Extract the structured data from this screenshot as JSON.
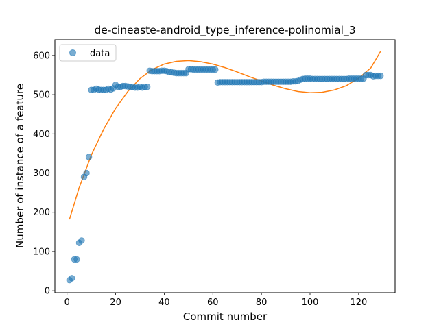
{
  "chart_data": {
    "type": "scatter",
    "title": "de-cineaste-android_type_inference-polinomial_3",
    "xlabel": "Commit number",
    "ylabel": "Number of instance of a feature",
    "xlim": [
      -5,
      135
    ],
    "ylim": [
      -5,
      640
    ],
    "xticks": [
      0,
      20,
      40,
      60,
      80,
      100,
      120
    ],
    "yticks": [
      0,
      100,
      200,
      300,
      400,
      500,
      600
    ],
    "grid": false,
    "legend_position": "top-left",
    "series": [
      {
        "name": "data",
        "kind": "markers",
        "color": "#1f77b4",
        "points": [
          [
            1,
            27
          ],
          [
            2,
            32
          ],
          [
            3,
            80
          ],
          [
            4,
            80
          ],
          [
            5,
            122
          ],
          [
            6,
            128
          ],
          [
            7,
            290
          ],
          [
            8,
            300
          ],
          [
            9,
            341
          ],
          [
            10,
            512
          ],
          [
            11,
            512
          ],
          [
            12,
            515
          ],
          [
            13,
            513
          ],
          [
            14,
            512
          ],
          [
            15,
            512
          ],
          [
            16,
            512
          ],
          [
            17,
            515
          ],
          [
            18,
            513
          ],
          [
            19,
            516
          ],
          [
            20,
            525
          ],
          [
            21,
            520
          ],
          [
            22,
            520
          ],
          [
            23,
            522
          ],
          [
            24,
            522
          ],
          [
            25,
            521
          ],
          [
            26,
            520
          ],
          [
            27,
            520
          ],
          [
            28,
            518
          ],
          [
            29,
            518
          ],
          [
            30,
            520
          ],
          [
            31,
            518
          ],
          [
            32,
            520
          ],
          [
            33,
            520
          ],
          [
            34,
            561
          ],
          [
            35,
            560
          ],
          [
            36,
            560
          ],
          [
            37,
            560
          ],
          [
            38,
            560
          ],
          [
            39,
            561
          ],
          [
            40,
            561
          ],
          [
            41,
            560
          ],
          [
            42,
            558
          ],
          [
            43,
            557
          ],
          [
            44,
            556
          ],
          [
            45,
            555
          ],
          [
            46,
            555
          ],
          [
            47,
            555
          ],
          [
            48,
            555
          ],
          [
            49,
            555
          ],
          [
            50,
            565
          ],
          [
            51,
            565
          ],
          [
            52,
            564
          ],
          [
            53,
            564
          ],
          [
            54,
            564
          ],
          [
            55,
            564
          ],
          [
            56,
            564
          ],
          [
            57,
            564
          ],
          [
            58,
            564
          ],
          [
            59,
            564
          ],
          [
            60,
            564
          ],
          [
            61,
            564
          ],
          [
            62,
            531
          ],
          [
            63,
            532
          ],
          [
            64,
            532
          ],
          [
            65,
            532
          ],
          [
            66,
            532
          ],
          [
            67,
            532
          ],
          [
            68,
            532
          ],
          [
            69,
            532
          ],
          [
            70,
            532
          ],
          [
            71,
            532
          ],
          [
            72,
            532
          ],
          [
            73,
            532
          ],
          [
            74,
            532
          ],
          [
            75,
            532
          ],
          [
            76,
            532
          ],
          [
            77,
            532
          ],
          [
            78,
            532
          ],
          [
            79,
            532
          ],
          [
            80,
            532
          ],
          [
            81,
            533
          ],
          [
            82,
            533
          ],
          [
            83,
            533
          ],
          [
            84,
            533
          ],
          [
            85,
            533
          ],
          [
            86,
            533
          ],
          [
            87,
            533
          ],
          [
            88,
            533
          ],
          [
            89,
            533
          ],
          [
            90,
            533
          ],
          [
            91,
            533
          ],
          [
            92,
            533
          ],
          [
            93,
            534
          ],
          [
            94,
            534
          ],
          [
            95,
            535
          ],
          [
            96,
            538
          ],
          [
            97,
            540
          ],
          [
            98,
            541
          ],
          [
            99,
            541
          ],
          [
            100,
            541
          ],
          [
            101,
            540
          ],
          [
            102,
            540
          ],
          [
            103,
            540
          ],
          [
            104,
            540
          ],
          [
            105,
            540
          ],
          [
            106,
            540
          ],
          [
            107,
            540
          ],
          [
            108,
            540
          ],
          [
            109,
            540
          ],
          [
            110,
            540
          ],
          [
            111,
            540
          ],
          [
            112,
            540
          ],
          [
            113,
            540
          ],
          [
            114,
            540
          ],
          [
            115,
            540
          ],
          [
            116,
            541
          ],
          [
            117,
            541
          ],
          [
            118,
            541
          ],
          [
            119,
            541
          ],
          [
            120,
            541
          ],
          [
            121,
            541
          ],
          [
            122,
            541
          ],
          [
            123,
            550
          ],
          [
            124,
            550
          ],
          [
            125,
            550
          ],
          [
            126,
            547
          ],
          [
            127,
            548
          ],
          [
            128,
            548
          ],
          [
            129,
            548
          ]
        ]
      },
      {
        "kind": "line",
        "color": "#ff7f0e",
        "points": [
          [
            1,
            182
          ],
          [
            5,
            263
          ],
          [
            10,
            346
          ],
          [
            15,
            411
          ],
          [
            20,
            465
          ],
          [
            25,
            508
          ],
          [
            30,
            541
          ],
          [
            35,
            564
          ],
          [
            40,
            578
          ],
          [
            45,
            585
          ],
          [
            50,
            587
          ],
          [
            55,
            584
          ],
          [
            60,
            578
          ],
          [
            65,
            569
          ],
          [
            70,
            558
          ],
          [
            75,
            546
          ],
          [
            80,
            535
          ],
          [
            85,
            524
          ],
          [
            90,
            515
          ],
          [
            95,
            508
          ],
          [
            100,
            505
          ],
          [
            105,
            506
          ],
          [
            110,
            512
          ],
          [
            115,
            523
          ],
          [
            120,
            542
          ],
          [
            125,
            568
          ],
          [
            129,
            610
          ]
        ]
      }
    ]
  }
}
